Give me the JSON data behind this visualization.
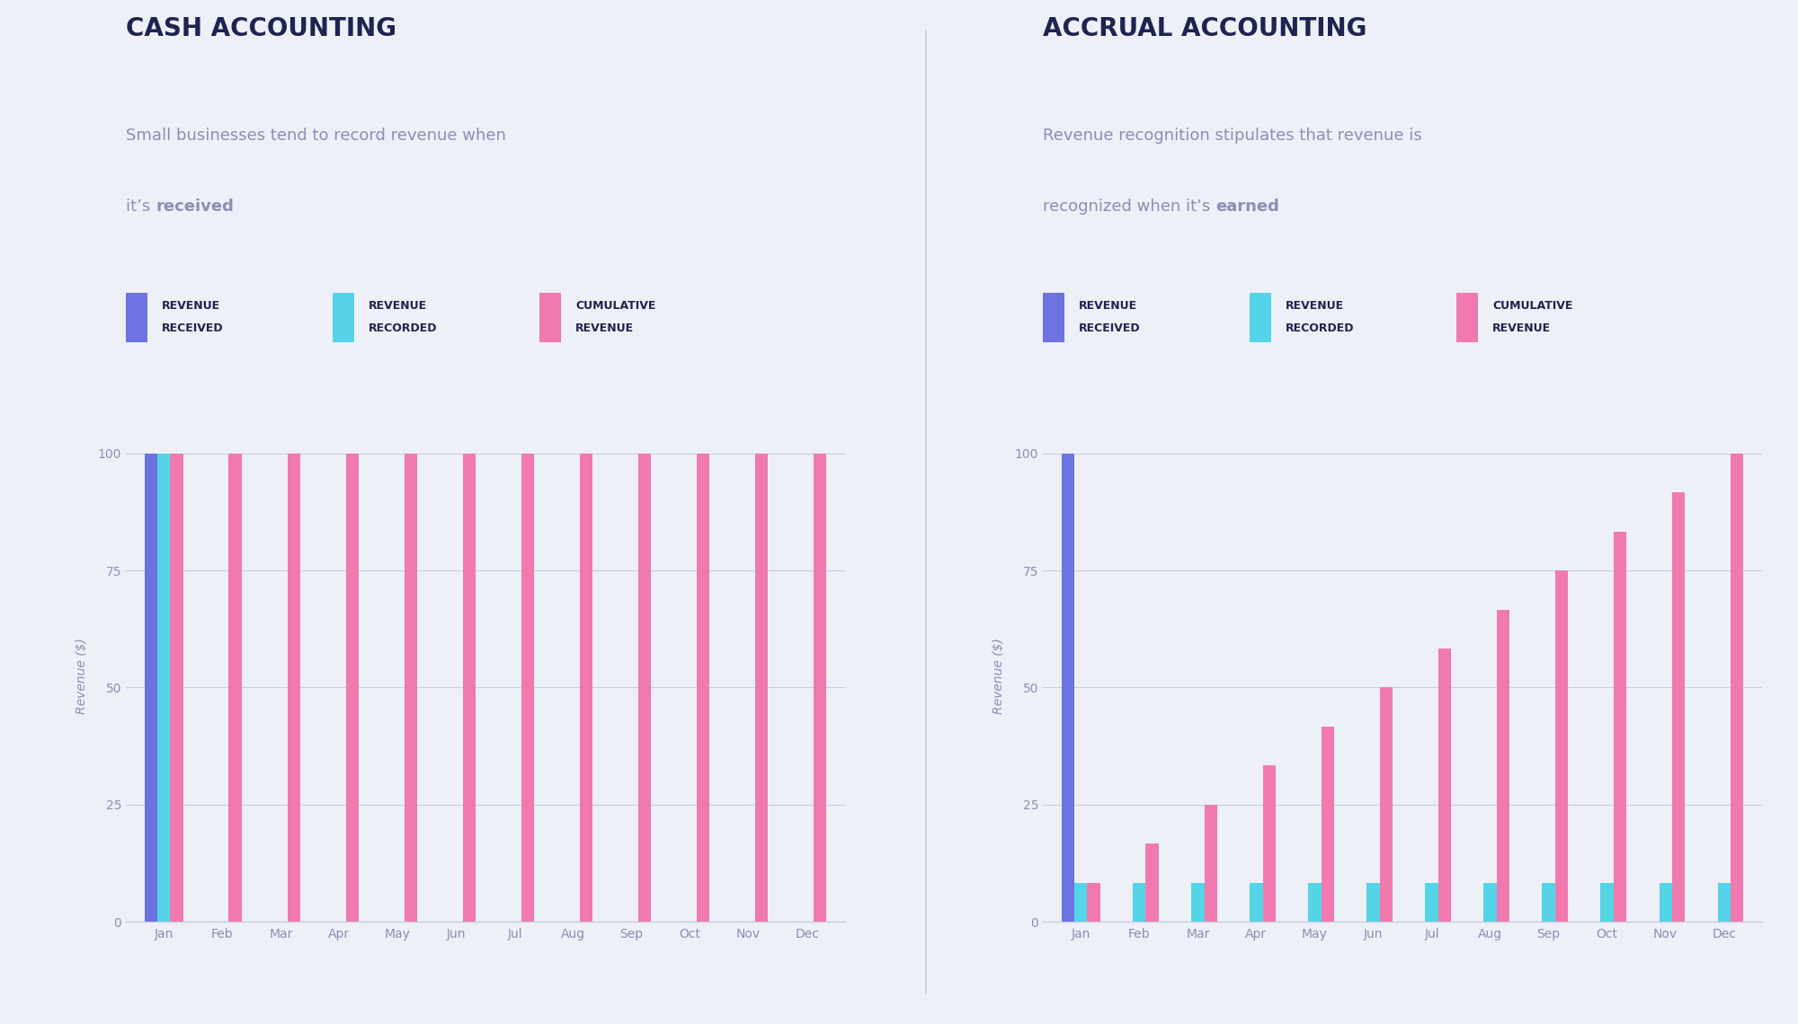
{
  "bg_color": "#eef0f7",
  "title_color": "#1e2451",
  "subtitle_color": "#8890b5",
  "legend_label_color": "#1e2451",
  "axis_color": "#c8cce0",
  "tick_color": "#8890b5",
  "bar_received_color": "#6c72e0",
  "bar_recorded_color": "#55d4e8",
  "bar_cumulative_color": "#f07ab0",
  "months": [
    "Jan",
    "Feb",
    "Mar",
    "Apr",
    "May",
    "Jun",
    "Jul",
    "Aug",
    "Sep",
    "Oct",
    "Nov",
    "Dec"
  ],
  "cash_received": [
    100,
    0,
    0,
    0,
    0,
    0,
    0,
    0,
    0,
    0,
    0,
    0
  ],
  "cash_recorded": [
    100,
    0,
    0,
    0,
    0,
    0,
    0,
    0,
    0,
    0,
    0,
    0
  ],
  "cash_cumulative": [
    100,
    100,
    100,
    100,
    100,
    100,
    100,
    100,
    100,
    100,
    100,
    100
  ],
  "accrual_received": [
    100,
    0,
    0,
    0,
    0,
    0,
    0,
    0,
    0,
    0,
    0,
    0
  ],
  "accrual_recorded": [
    8.33,
    8.33,
    8.33,
    8.33,
    8.33,
    8.33,
    8.33,
    8.33,
    8.33,
    8.33,
    8.33,
    8.33
  ],
  "accrual_cumulative": [
    8.33,
    16.67,
    25,
    33.33,
    41.67,
    50,
    58.33,
    66.67,
    75,
    83.33,
    91.67,
    100
  ],
  "left_title": "CASH ACCOUNTING",
  "left_sub1": "Small businesses tend to record revenue when",
  "left_sub2_plain": "it’s ",
  "left_sub2_bold": "received",
  "right_title": "ACCRUAL ACCOUNTING",
  "right_sub1": "Revenue recognition stipulates that revenue is",
  "right_sub2_plain": "recognized when it’s ",
  "right_sub2_bold": "earned",
  "legend1": "REVENUE\nRECEIVED",
  "legend2": "REVENUE\nRECORDED",
  "legend3": "CUMULATIVE\nREVENUE",
  "ylabel": "Revenue ($)",
  "ylim": [
    0,
    105
  ],
  "yticks": [
    0,
    25,
    50,
    75,
    100
  ],
  "divider_color": "#c8cce0",
  "title_fontsize": 20,
  "subtitle_fontsize": 13,
  "legend_fontsize": 9,
  "axis_label_fontsize": 10,
  "tick_fontsize": 10
}
